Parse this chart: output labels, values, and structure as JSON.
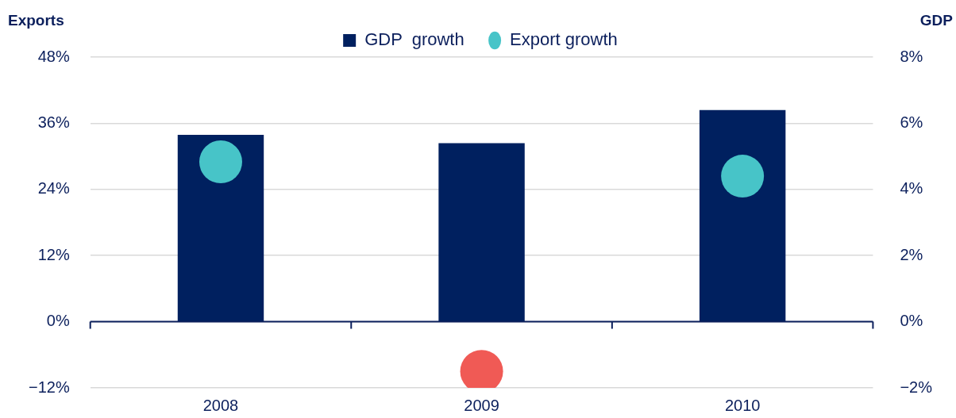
{
  "chart_data": {
    "type": "bar",
    "categories": [
      "2008",
      "2009",
      "2010"
    ],
    "ylabel": "Exports",
    "y2label": "GDP",
    "series": [
      {
        "name": "GDP  growth",
        "axis": "y2",
        "color": "#00205f",
        "values": [
          5.65,
          5.4,
          6.4
        ]
      },
      {
        "name": "Export growth",
        "type": "scatter",
        "axis": "y",
        "color": "#47c4c8",
        "colors": [
          "#47c4c8",
          "#f05a55",
          "#47c4c8"
        ],
        "values": [
          29,
          -9,
          26.4
        ]
      }
    ],
    "ylim": [
      -12,
      48
    ],
    "yticks": [
      {
        "value": -12,
        "label": "−12%"
      },
      {
        "value": 0,
        "label": "0%"
      },
      {
        "value": 12,
        "label": "12%"
      },
      {
        "value": 24,
        "label": "24%"
      },
      {
        "value": 36,
        "label": "36%"
      },
      {
        "value": 48,
        "label": "48%"
      }
    ],
    "y2lim": [
      -2,
      8
    ],
    "y2ticks": [
      {
        "value": -2,
        "label": "−2%"
      },
      {
        "value": 0,
        "label": "0%"
      },
      {
        "value": 2,
        "label": "2%"
      },
      {
        "value": 4,
        "label": "4%"
      },
      {
        "value": 6,
        "label": "6%"
      },
      {
        "value": 8,
        "label": "8%"
      }
    ],
    "grid": "y",
    "legend": "top",
    "marker": "circle"
  }
}
